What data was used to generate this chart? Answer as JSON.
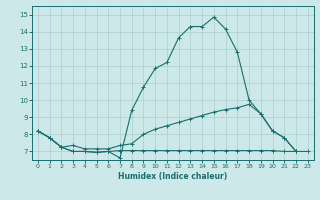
{
  "xlabel": "Humidex (Indice chaleur)",
  "bg_color": "#cce8e8",
  "grid_color": "#aacfcf",
  "line_color": "#1a6e6e",
  "xlim": [
    -0.5,
    23.5
  ],
  "ylim": [
    6.5,
    15.5
  ],
  "xticks": [
    0,
    1,
    2,
    3,
    4,
    5,
    6,
    7,
    8,
    9,
    10,
    11,
    12,
    13,
    14,
    15,
    16,
    17,
    18,
    19,
    20,
    21,
    22,
    23
  ],
  "yticks": [
    7,
    8,
    9,
    10,
    11,
    12,
    13,
    14,
    15
  ],
  "line1_x": [
    0,
    1,
    2,
    3,
    4,
    5,
    6,
    7,
    8,
    9,
    10,
    11,
    12,
    13,
    14,
    15,
    16,
    17,
    18,
    19,
    20,
    21,
    22
  ],
  "line1_y": [
    8.2,
    7.8,
    7.25,
    7.0,
    7.0,
    6.95,
    7.0,
    6.62,
    9.4,
    10.75,
    11.85,
    12.2,
    13.65,
    14.3,
    14.3,
    14.85,
    14.15,
    12.8,
    10.0,
    9.2,
    8.2,
    7.8,
    7.0
  ],
  "line2_x": [
    0,
    1,
    2,
    3,
    4,
    5,
    6,
    7,
    8,
    9,
    10,
    11,
    12,
    13,
    14,
    15,
    16,
    17,
    18,
    19,
    20,
    21,
    22,
    23
  ],
  "line2_y": [
    8.2,
    7.8,
    7.25,
    7.35,
    7.15,
    7.15,
    7.15,
    7.35,
    7.45,
    8.0,
    8.3,
    8.5,
    8.7,
    8.9,
    9.1,
    9.3,
    9.45,
    9.55,
    9.75,
    9.2,
    8.2,
    7.8,
    7.0,
    null
  ],
  "line3_x": [
    0,
    1,
    2,
    3,
    4,
    5,
    6,
    7,
    8,
    9,
    10,
    11,
    12,
    13,
    14,
    15,
    16,
    17,
    18,
    19,
    20,
    21,
    22,
    23
  ],
  "line3_y": [
    8.2,
    7.8,
    7.25,
    7.0,
    7.0,
    6.95,
    7.0,
    7.05,
    7.05,
    7.05,
    7.05,
    7.05,
    7.05,
    7.05,
    7.05,
    7.05,
    7.05,
    7.05,
    7.05,
    7.05,
    7.05,
    7.0,
    7.0,
    7.0
  ]
}
